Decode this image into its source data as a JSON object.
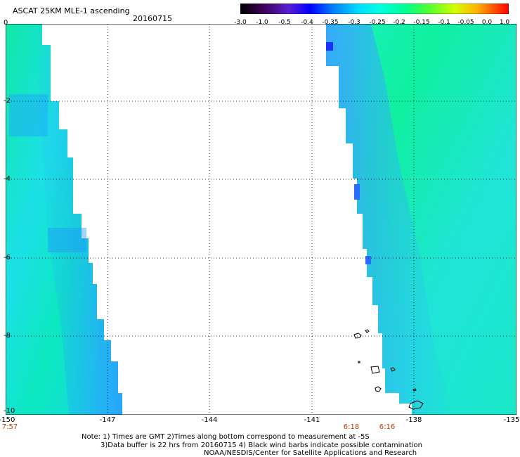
{
  "header": {
    "title": "ASCAT 25KM MLE-1 ascending",
    "date": "20160715"
  },
  "colorbar": {
    "labels": [
      "-3.0",
      "-1.0",
      "-0.5",
      "-0.4",
      "-0.35",
      "-0.3",
      "-0.25",
      "-0.2",
      "-0.15",
      "-0.1",
      "-0.05",
      "0.0",
      "1.0"
    ],
    "colors": [
      "#000000",
      "#5a0a78",
      "#5a1ed2",
      "#0000ff",
      "#006eff",
      "#00c8ff",
      "#00ffe6",
      "#00ff96",
      "#50ff32",
      "#c8ff00",
      "#ffd200",
      "#ff5a00",
      "#ff0000"
    ]
  },
  "axes": {
    "y_ticks": [
      "0",
      "-2",
      "-4",
      "-6",
      "-8",
      "-10"
    ],
    "x_ticks": [
      "-150",
      "-147",
      "-144",
      "-141",
      "-138",
      "-135"
    ],
    "times": [
      "7:57",
      "6:18",
      "6:16"
    ]
  },
  "notes": {
    "line1": "Note: 1) Times are GMT 2)Times along bottom correspond to measurement at -5S",
    "line2": "3)Data buffer is 22 hrs from 20160715 4) Black wind barbs indicate possible contamination",
    "line3": "NOAA/NESDIS/Center for Satellite Applications and Research"
  }
}
